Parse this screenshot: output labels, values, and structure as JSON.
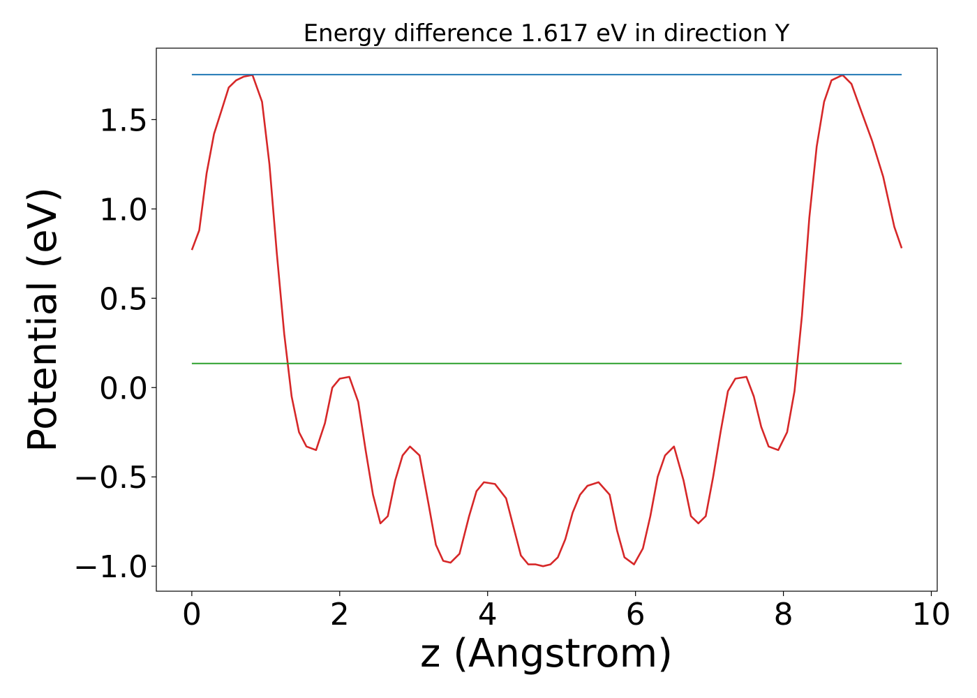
{
  "chart_data": {
    "type": "line",
    "title": "Energy difference 1.617 eV in direction Y",
    "xlabel": "z (Angstrom)",
    "ylabel": "Potential (eV)",
    "xlim": [
      -0.48,
      10.08
    ],
    "ylim": [
      -1.14,
      1.9
    ],
    "xticks": [
      0,
      2,
      4,
      6,
      8,
      10
    ],
    "xtick_labels": [
      "0",
      "2",
      "4",
      "6",
      "8",
      "10"
    ],
    "yticks": [
      -1.0,
      -0.5,
      0.0,
      0.5,
      1.0,
      1.5
    ],
    "ytick_labels": [
      "−1.0",
      "−0.5",
      "0.0",
      "0.5",
      "1.0",
      "1.5"
    ],
    "grid": false,
    "series": [
      {
        "color": "#d62728",
        "x": [
          0.0,
          0.1,
          0.2,
          0.3,
          0.4,
          0.5,
          0.6,
          0.7,
          0.82,
          0.95,
          1.05,
          1.15,
          1.25,
          1.35,
          1.45,
          1.55,
          1.68,
          1.8,
          1.9,
          2.0,
          2.13,
          2.25,
          2.35,
          2.45,
          2.55,
          2.65,
          2.75,
          2.85,
          2.95,
          3.08,
          3.2,
          3.3,
          3.4,
          3.5,
          3.62,
          3.75,
          3.85,
          3.95,
          4.1,
          4.25,
          4.35,
          4.45,
          4.55,
          4.65,
          4.75,
          4.85,
          4.95,
          5.05,
          5.15,
          5.25,
          5.35,
          5.5,
          5.65,
          5.75,
          5.85,
          5.98,
          6.1,
          6.2,
          6.3,
          6.4,
          6.52,
          6.65,
          6.75,
          6.85,
          6.95,
          7.05,
          7.15,
          7.25,
          7.35,
          7.5,
          7.6,
          7.7,
          7.8,
          7.93,
          8.05,
          8.15,
          8.25,
          8.35,
          8.45,
          8.55,
          8.65,
          8.8,
          8.92,
          9.05,
          9.2,
          9.35,
          9.5,
          9.6
        ],
        "values": [
          0.77,
          0.88,
          1.2,
          1.42,
          1.55,
          1.68,
          1.72,
          1.74,
          1.75,
          1.6,
          1.25,
          0.75,
          0.3,
          -0.05,
          -0.25,
          -0.33,
          -0.35,
          -0.2,
          0.0,
          0.05,
          0.06,
          -0.08,
          -0.35,
          -0.6,
          -0.76,
          -0.72,
          -0.52,
          -0.38,
          -0.33,
          -0.38,
          -0.65,
          -0.88,
          -0.97,
          -0.98,
          -0.93,
          -0.72,
          -0.58,
          -0.53,
          -0.54,
          -0.62,
          -0.78,
          -0.94,
          -0.99,
          -0.99,
          -1.0,
          -0.99,
          -0.95,
          -0.85,
          -0.7,
          -0.6,
          -0.55,
          -0.53,
          -0.6,
          -0.8,
          -0.95,
          -0.99,
          -0.9,
          -0.72,
          -0.5,
          -0.38,
          -0.33,
          -0.52,
          -0.72,
          -0.76,
          -0.72,
          -0.5,
          -0.25,
          -0.02,
          0.05,
          0.06,
          -0.05,
          -0.22,
          -0.33,
          -0.35,
          -0.25,
          -0.02,
          0.4,
          0.95,
          1.35,
          1.6,
          1.72,
          1.75,
          1.7,
          1.55,
          1.38,
          1.18,
          0.9,
          0.78
        ]
      },
      {
        "color": "#1f77b4",
        "x": [
          0.0,
          9.6
        ],
        "values": [
          1.752,
          1.752
        ]
      },
      {
        "color": "#2ca02c",
        "x": [
          0.0,
          9.6
        ],
        "values": [
          0.135,
          0.135
        ]
      }
    ]
  }
}
